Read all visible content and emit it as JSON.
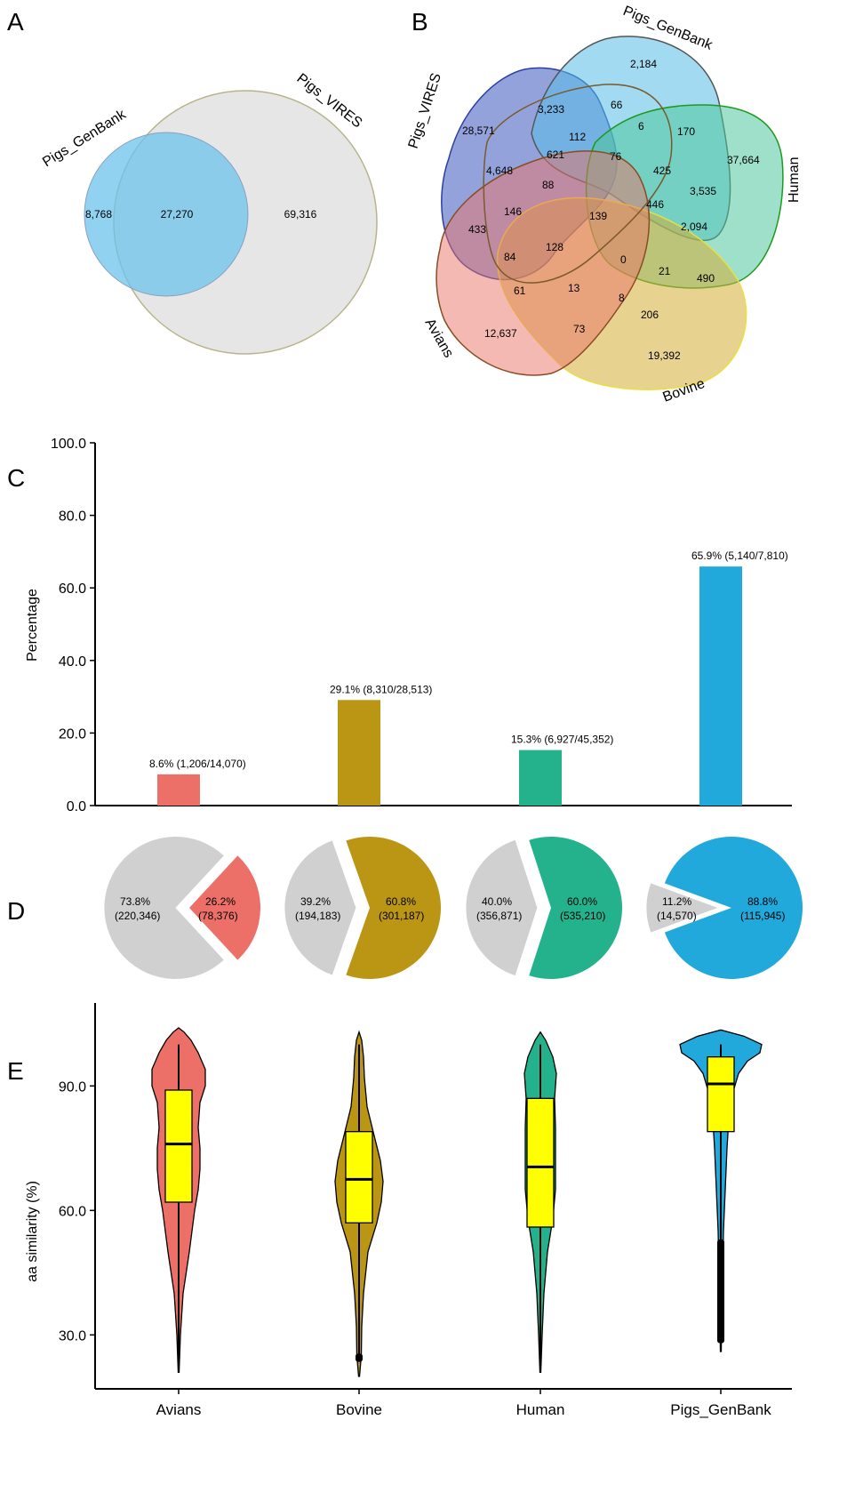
{
  "panels": {
    "a": "A",
    "b": "B",
    "c": "C",
    "d": "D",
    "e": "E"
  },
  "chart_data": [
    {
      "type": "venn",
      "panel": "A",
      "sets": [
        "Pigs_GenBank",
        "Pigs_VIRES"
      ],
      "regions": [
        {
          "sets": [
            "Pigs_GenBank"
          ],
          "label": "8,768",
          "value": 8768
        },
        {
          "sets": [
            "Pigs_GenBank",
            "Pigs_VIRES"
          ],
          "label": "27,270",
          "value": 27270
        },
        {
          "sets": [
            "Pigs_VIRES"
          ],
          "label": "69,316",
          "value": 69316
        }
      ],
      "colors": {
        "Pigs_GenBank": "#7fcbee",
        "Pigs_VIRES": "#e3e3e3"
      }
    },
    {
      "type": "venn",
      "panel": "B",
      "sets": [
        "Pigs_VIRES",
        "Pigs_GenBank",
        "Human",
        "Bovine",
        "Avians"
      ],
      "region_labels": [
        "28,571",
        "2,184",
        "37,664",
        "19,392",
        "12,637",
        "3,233",
        "66",
        "6",
        "170",
        "4,648",
        "621",
        "112",
        "76",
        "425",
        "3,535",
        "88",
        "146",
        "139",
        "446",
        "2,094",
        "433",
        "84",
        "128",
        "0",
        "21",
        "490",
        "61",
        "13",
        "8",
        "206",
        "73"
      ],
      "colors": {
        "Pigs_VIRES": "#5e6fc9",
        "Pigs_GenBank": "#7fcbe9",
        "Human": "#7fd3b3",
        "Bovine": "#dfc56a",
        "Avians": "#ee9b93"
      }
    },
    {
      "type": "bar",
      "panel": "C",
      "categories": [
        "Avians",
        "Bovine",
        "Human",
        "Pigs_GenBank"
      ],
      "values": [
        8.6,
        29.1,
        15.3,
        65.9
      ],
      "data_labels": [
        "8.6% (1,206/14,070)",
        "29.1% (8,310/28,513)",
        "15.3% (6,927/45,352)",
        "65.9% (5,140/7,810)"
      ],
      "colors": [
        "#ec7068",
        "#bb9615",
        "#24b28c",
        "#22a9dc"
      ],
      "ylabel": "Percentage",
      "ylim": [
        0,
        100
      ],
      "yticks": [
        "0.0",
        "20.0",
        "40.0",
        "60.0",
        "80.0",
        "100.0"
      ]
    },
    {
      "type": "pie",
      "panel": "D",
      "pies": [
        {
          "category": "Avians",
          "color": "#ec7068",
          "slices": [
            {
              "pct": 73.8,
              "label": "73.8%",
              "count": "(220,346)"
            },
            {
              "pct": 26.2,
              "label": "26.2%",
              "count": "(78,376)"
            }
          ]
        },
        {
          "category": "Bovine",
          "color": "#bb9615",
          "slices": [
            {
              "pct": 39.2,
              "label": "39.2%",
              "count": "(194,183)"
            },
            {
              "pct": 60.8,
              "label": "60.8%",
              "count": "(301,187)"
            }
          ]
        },
        {
          "category": "Human",
          "color": "#24b28c",
          "slices": [
            {
              "pct": 40.0,
              "label": "40.0%",
              "count": "(356,871)"
            },
            {
              "pct": 60.0,
              "label": "60.0%",
              "count": "(535,210)"
            }
          ]
        },
        {
          "category": "Pigs_GenBank",
          "color": "#22a9dc",
          "slices": [
            {
              "pct": 11.2,
              "label": "11.2%",
              "count": "(14,570)"
            },
            {
              "pct": 88.8,
              "label": "88.8%",
              "count": "(115,945)"
            }
          ]
        }
      ],
      "grey": "#d0d0d0"
    },
    {
      "type": "violin",
      "panel": "E",
      "categories": [
        "Avians",
        "Bovine",
        "Human",
        "Pigs_GenBank"
      ],
      "colors": [
        "#ec7068",
        "#bb9615",
        "#24b28c",
        "#22a9dc"
      ],
      "box_color": "#ffff00",
      "ylabel": "aa similarity (%)",
      "yticks": [
        "30.0",
        "60.0",
        "90.0"
      ],
      "ylim": [
        17,
        110
      ],
      "boxes": [
        {
          "q1": 62.0,
          "median": 76.0,
          "q3": 89.0,
          "whisker_low": 21.0,
          "whisker_high": 100.0
        },
        {
          "q1": 57.0,
          "median": 67.5,
          "q3": 79.0,
          "whisker_low": 25.0,
          "whisker_high": 100.0
        },
        {
          "q1": 56.0,
          "median": 70.5,
          "q3": 87.0,
          "whisker_low": 21.0,
          "whisker_high": 100.0
        },
        {
          "q1": 79.0,
          "median": 90.5,
          "q3": 97.0,
          "whisker_low": 53.0,
          "whisker_high": 100.0
        }
      ]
    }
  ]
}
